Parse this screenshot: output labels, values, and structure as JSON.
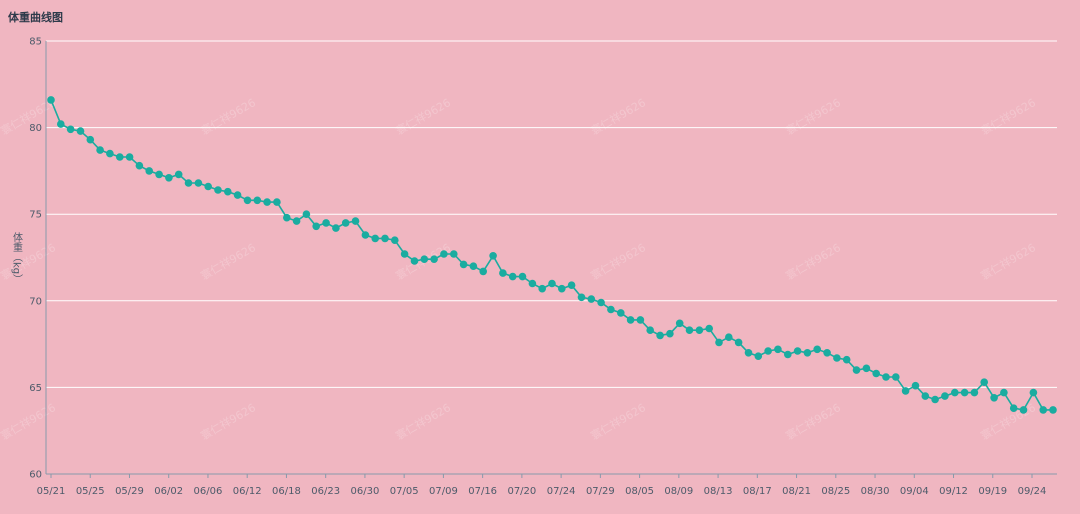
{
  "title": "体重曲线图",
  "watermark": "寰仁祥9626",
  "colors": {
    "background": "#f0b6c1",
    "series": "#1aaca0",
    "grid": "#ffffff",
    "axis": "#8899aa",
    "text": "#4d5b6a"
  },
  "chart_data": {
    "type": "line",
    "title": "体重曲线图",
    "xlabel": "",
    "ylabel": "体重（kg）",
    "ylim": [
      60,
      85
    ],
    "yticks": [
      60,
      65,
      70,
      75,
      80,
      85
    ],
    "grid": true,
    "legend": "none",
    "x_tick_labels": [
      "05/21",
      "05/25",
      "05/29",
      "06/02",
      "06/06",
      "06/12",
      "06/18",
      "06/23",
      "06/30",
      "07/05",
      "07/09",
      "07/16",
      "07/20",
      "07/24",
      "07/29",
      "08/05",
      "08/09",
      "08/13",
      "08/17",
      "08/21",
      "08/25",
      "08/30",
      "09/04",
      "09/12",
      "09/19",
      "09/24"
    ],
    "series": [
      {
        "name": "",
        "values": [
          81.6,
          80.2,
          79.9,
          79.8,
          79.3,
          78.7,
          78.5,
          78.3,
          78.3,
          77.8,
          77.5,
          77.3,
          77.1,
          77.3,
          76.8,
          76.8,
          76.6,
          76.4,
          76.3,
          76.1,
          75.8,
          75.8,
          75.7,
          75.7,
          74.8,
          74.6,
          75.0,
          74.3,
          74.5,
          74.2,
          74.5,
          74.6,
          73.8,
          73.6,
          73.6,
          73.5,
          72.7,
          72.3,
          72.4,
          72.4,
          72.7,
          72.7,
          72.1,
          72.0,
          71.7,
          72.6,
          71.6,
          71.4,
          71.4,
          71.0,
          70.7,
          71.0,
          70.7,
          70.9,
          70.2,
          70.1,
          69.9,
          69.5,
          69.3,
          68.9,
          68.9,
          68.3,
          68.0,
          68.1,
          68.7,
          68.3,
          68.3,
          68.4,
          67.6,
          67.9,
          67.6,
          67.0,
          66.8,
          67.1,
          67.2,
          66.9,
          67.1,
          67.0,
          67.2,
          67.0,
          66.7,
          66.6,
          66.0,
          66.1,
          65.8,
          65.6,
          65.6,
          64.8,
          65.1,
          64.5,
          64.3,
          64.5,
          64.7,
          64.7,
          64.7,
          65.3,
          64.4,
          64.7,
          63.8,
          63.7,
          64.7,
          63.7,
          63.7
        ]
      }
    ]
  }
}
